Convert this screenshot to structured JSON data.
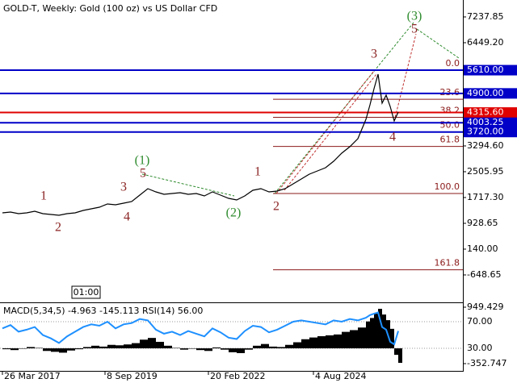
{
  "chart_data": [
    {
      "type": "line",
      "title": "GOLD-T, Weekly:  Gold (100 oz) vs US Dollar CFD",
      "time_label": "01:00",
      "color": "#000000",
      "x": [
        0,
        10,
        20,
        30,
        40,
        50,
        60,
        70,
        80,
        90,
        100,
        110,
        120,
        130,
        140,
        150,
        160,
        170,
        180,
        190,
        200,
        210,
        220,
        230,
        240,
        250,
        260,
        270,
        280,
        290,
        300,
        310,
        320,
        330,
        340,
        350,
        360,
        370,
        380,
        390,
        400,
        410,
        420,
        430,
        440,
        450,
        455,
        460,
        465,
        470,
        475,
        480,
        485,
        490
      ],
      "values": [
        1249,
        1273,
        1224,
        1249,
        1298,
        1224,
        1199,
        1175,
        1224,
        1249,
        1323,
        1372,
        1421,
        1520,
        1495,
        1545,
        1594,
        1791,
        1988,
        1890,
        1816,
        1840,
        1865,
        1816,
        1840,
        1766,
        1890,
        1791,
        1693,
        1643,
        1766,
        1939,
        1988,
        1890,
        1914,
        1988,
        2136,
        2284,
        2432,
        2530,
        2629,
        2826,
        3073,
        3270,
        3516,
        4108,
        4551,
        5044,
        5488,
        4601,
        4847,
        4502,
        4058,
        4330
      ],
      "xlim": [
        -3,
        570
      ],
      "xticks": [
        {
          "value": 0,
          "label": "26 Mar 2017"
        },
        {
          "value": 127,
          "label": "8 Sep 2019"
        },
        {
          "value": 255,
          "label": "20 Feb 2022"
        },
        {
          "value": 385,
          "label": "4 Aug 2024"
        }
      ],
      "ylim": [
        -1487,
        7755
      ],
      "yticks": [
        7237.85,
        {
          "value": 6449.2,
          "label": "6449.20"
        },
        {
          "value": 3294.6,
          "label": "3294.60"
        },
        2505.95,
        {
          "value": 1717.3,
          "label": "1717.30"
        },
        928.65,
        {
          "value": 140,
          "label": "140.00"
        },
        -648.65
      ],
      "levels": [
        {
          "value": 5610,
          "label": "5610.00",
          "color": "#0000c8"
        },
        {
          "value": 4900,
          "label": "4900.00",
          "color": "#0000c8"
        },
        {
          "value": 4315.6,
          "label": "4315.60",
          "color": "#e00000"
        },
        {
          "value": 4003.25,
          "label": "4003.25",
          "color": "#0000c8"
        },
        {
          "value": 3720,
          "label": "3720.00",
          "color": "#0000c8"
        }
      ],
      "fibonacci": {
        "color": "#8b1a1a",
        "levels": [
          {
            "label": "0.0",
            "price": 5610
          },
          {
            "label": "23.6",
            "price": 4720
          },
          {
            "label": "38.2",
            "price": 4170
          },
          {
            "label": "50.0",
            "price": 3725
          },
          {
            "label": "61.8",
            "price": 3280
          },
          {
            "label": "100.0",
            "price": 1840
          },
          {
            "label": "161.8",
            "price": -493
          }
        ]
      },
      "annotations": [
        {
          "text": "1",
          "x": 51,
          "y": 1742,
          "color": "#8b2323"
        },
        {
          "text": "2",
          "x": 69,
          "y": 781,
          "color": "#8b2323"
        },
        {
          "text": "3",
          "x": 150,
          "y": 2013,
          "color": "#8b2323"
        },
        {
          "text": "4",
          "x": 154,
          "y": 1101,
          "color": "#8b2323"
        },
        {
          "text": "5",
          "x": 174,
          "y": 2432,
          "color": "#8b2323"
        },
        {
          "text": "(1)",
          "x": 173,
          "y": 2826,
          "color": "#2e8b2e"
        },
        {
          "text": "(2)",
          "x": 286,
          "y": 1224,
          "color": "#2e8b2e"
        },
        {
          "text": "1",
          "x": 316,
          "y": 2481,
          "color": "#8b2323"
        },
        {
          "text": "2",
          "x": 339,
          "y": 1421,
          "color": "#8b2323"
        },
        {
          "text": "3",
          "x": 460,
          "y": 6079,
          "color": "#8b2323"
        },
        {
          "text": "4",
          "x": 483,
          "y": 3541,
          "color": "#8b2323"
        },
        {
          "text": "5",
          "x": 510,
          "y": 6843,
          "color": "#8b2323"
        },
        {
          "text": "(3)",
          "x": 510,
          "y": 7237,
          "color": "#2e8b2e"
        }
      ]
    },
    {
      "type": "combo",
      "title": "MACD(5,34,5) -4.963 -145.113 RSI(14) 56.00",
      "x": [
        0,
        10,
        20,
        30,
        40,
        50,
        60,
        70,
        80,
        90,
        100,
        110,
        120,
        130,
        140,
        150,
        160,
        170,
        180,
        190,
        200,
        210,
        220,
        230,
        240,
        250,
        260,
        270,
        280,
        290,
        300,
        310,
        320,
        330,
        340,
        350,
        360,
        370,
        380,
        390,
        400,
        410,
        420,
        430,
        440,
        450,
        455,
        460,
        465,
        470,
        475,
        480,
        485,
        490
      ],
      "xlim": [
        -3,
        570
      ],
      "series": [
        {
          "kind": "bar",
          "color": "#000000",
          "axis": "y",
          "values": [
            -20,
            -40,
            -10,
            30,
            10,
            -60,
            -80,
            -100,
            -50,
            -20,
            30,
            60,
            40,
            80,
            70,
            90,
            120,
            200,
            240,
            150,
            60,
            10,
            -30,
            -10,
            -40,
            -60,
            20,
            -30,
            -90,
            -110,
            -30,
            60,
            100,
            40,
            30,
            80,
            140,
            210,
            250,
            280,
            300,
            320,
            380,
            420,
            480,
            620,
            700,
            820,
            911,
            780,
            650,
            450,
            -150,
            -335
          ]
        },
        {
          "kind": "line",
          "color": "#1e90ff",
          "axis": "y2",
          "values": [
            60,
            65,
            55,
            58,
            62,
            50,
            45,
            38,
            48,
            55,
            62,
            66,
            64,
            70,
            60,
            66,
            68,
            74,
            72,
            58,
            52,
            55,
            50,
            56,
            52,
            48,
            60,
            54,
            46,
            44,
            56,
            64,
            62,
            54,
            58,
            64,
            70,
            72,
            70,
            68,
            66,
            72,
            70,
            74,
            72,
            76,
            80,
            82,
            84,
            62,
            58,
            40,
            36,
            56
          ]
        }
      ],
      "ylim": [
        -520,
        1024
      ],
      "yticks": [
        949.429,
        -352.747
      ],
      "y2lim": [
        -3.9,
        96.7
      ],
      "y2ticks": [
        {
          "value": 70,
          "label": "70.00"
        },
        {
          "value": 30,
          "label": "30.00"
        }
      ]
    }
  ]
}
